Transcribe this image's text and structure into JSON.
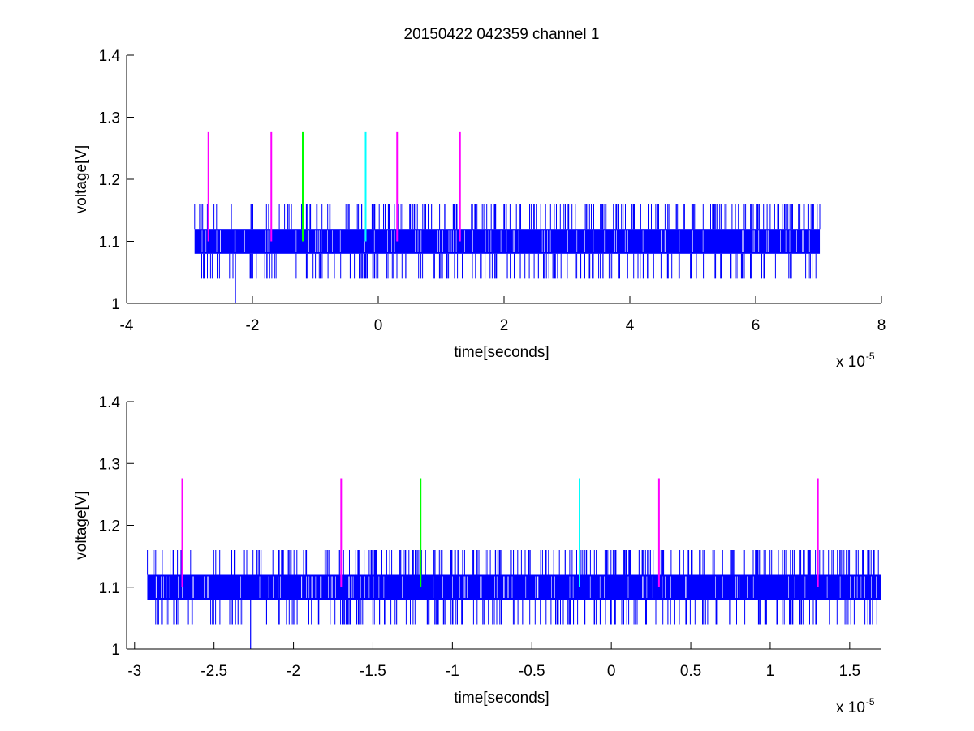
{
  "figure": {
    "title": "20150422 042359 channel 1"
  },
  "colors": {
    "signal": "#0000ff",
    "marker_magenta": "#ff00ff",
    "marker_green": "#00ff00",
    "marker_cyan": "#00ffff",
    "axes": "#000000",
    "background": "#ffffff"
  },
  "chart_data": [
    {
      "type": "line",
      "title": "20150422 042359 channel 1",
      "xlabel": "time[seconds]",
      "ylabel": "voltage[V]",
      "x_exponent_label": "x 10",
      "x_exponent": "-5",
      "xlim": [
        -4,
        8
      ],
      "ylim": [
        1,
        1.4
      ],
      "xticks": [
        -4,
        -2,
        0,
        2,
        4,
        6,
        8
      ],
      "xtick_labels": [
        "-4",
        "-2",
        "0",
        "2",
        "4",
        "6",
        "8"
      ],
      "yticks": [
        1,
        1.1,
        1.2,
        1.3,
        1.4
      ],
      "ytick_labels": [
        "1",
        "1.1",
        "1.2",
        "1.3",
        "1.4"
      ],
      "grid": false,
      "legend": "none",
      "series": [
        {
          "trace_x_range": [
            -2.92,
            7.02
          ],
          "base_band": [
            1.08,
            1.12
          ],
          "spike_levels": [
            1.04,
            1.16
          ],
          "outlier": {
            "x": -2.27,
            "y": 1.0
          }
        }
      ],
      "markers": [
        {
          "x": -2.7,
          "y_range": [
            1.1,
            1.276
          ],
          "color": "magenta"
        },
        {
          "x": -1.7,
          "y_range": [
            1.1,
            1.276
          ],
          "color": "magenta"
        },
        {
          "x": -1.2,
          "y_range": [
            1.1,
            1.276
          ],
          "color": "green"
        },
        {
          "x": -0.2,
          "y_range": [
            1.1,
            1.276
          ],
          "color": "cyan"
        },
        {
          "x": 0.3,
          "y_range": [
            1.1,
            1.276
          ],
          "color": "magenta"
        },
        {
          "x": 1.3,
          "y_range": [
            1.1,
            1.276
          ],
          "color": "magenta"
        }
      ]
    },
    {
      "type": "line",
      "title": "",
      "xlabel": "time[seconds]",
      "ylabel": "voltage[V]",
      "x_exponent_label": "x 10",
      "x_exponent": "-5",
      "xlim": [
        -3.05,
        1.7
      ],
      "ylim": [
        1,
        1.4
      ],
      "xticks": [
        -3,
        -2.5,
        -2,
        -1.5,
        -1,
        -0.5,
        0,
        0.5,
        1,
        1.5
      ],
      "xtick_labels": [
        "-3",
        "-2.5",
        "-2",
        "-1.5",
        "-1",
        "-0.5",
        "0",
        "0.5",
        "1",
        "1.5"
      ],
      "yticks": [
        1,
        1.1,
        1.2,
        1.3,
        1.4
      ],
      "ytick_labels": [
        "1",
        "1.1",
        "1.2",
        "1.3",
        "1.4"
      ],
      "grid": false,
      "legend": "none",
      "series": [
        {
          "trace_x_range": [
            -2.92,
            1.7
          ],
          "base_band": [
            1.08,
            1.12
          ],
          "spike_levels": [
            1.04,
            1.16
          ],
          "outlier": {
            "x": -2.27,
            "y": 1.0
          }
        }
      ],
      "markers": [
        {
          "x": -2.7,
          "y_range": [
            1.1,
            1.276
          ],
          "color": "magenta"
        },
        {
          "x": -1.7,
          "y_range": [
            1.1,
            1.276
          ],
          "color": "magenta"
        },
        {
          "x": -1.2,
          "y_range": [
            1.1,
            1.276
          ],
          "color": "green"
        },
        {
          "x": -0.2,
          "y_range": [
            1.1,
            1.276
          ],
          "color": "cyan"
        },
        {
          "x": 0.3,
          "y_range": [
            1.1,
            1.276
          ],
          "color": "magenta"
        },
        {
          "x": 1.3,
          "y_range": [
            1.1,
            1.276
          ],
          "color": "magenta"
        }
      ]
    }
  ]
}
